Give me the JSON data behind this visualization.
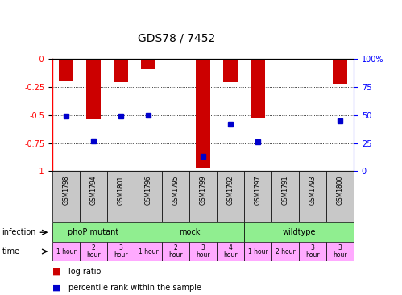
{
  "title": "GDS78 / 7452",
  "samples": [
    "GSM1798",
    "GSM1794",
    "GSM1801",
    "GSM1796",
    "GSM1795",
    "GSM1799",
    "GSM1792",
    "GSM1797",
    "GSM1791",
    "GSM1793",
    "GSM1800"
  ],
  "log_ratio": [
    -0.2,
    -0.54,
    -0.21,
    -0.09,
    0.0,
    -0.97,
    -0.21,
    -0.52,
    0.0,
    0.0,
    -0.22
  ],
  "percentile": [
    0.49,
    0.27,
    0.49,
    0.5,
    0.0,
    0.13,
    0.42,
    0.26,
    0.0,
    0.0,
    0.45
  ],
  "has_bar": [
    true,
    true,
    true,
    true,
    false,
    true,
    true,
    true,
    false,
    false,
    true
  ],
  "has_percentile": [
    true,
    true,
    true,
    true,
    false,
    true,
    true,
    true,
    false,
    false,
    true
  ],
  "group_bounds": [
    [
      0,
      3,
      "phoP mutant"
    ],
    [
      3,
      7,
      "mock"
    ],
    [
      7,
      11,
      "wildtype"
    ]
  ],
  "time_labels_full": [
    "1 hour",
    "2\nhour",
    "3\nhour",
    "1 hour",
    "2\nhour",
    "3\nhour",
    "4\nhour",
    "1 hour",
    "2 hour",
    "3\nhour",
    "3\nhour"
  ],
  "ylim_left": [
    -1.0,
    0.0
  ],
  "ylim_right": [
    0,
    100
  ],
  "yticks_left": [
    0.0,
    -0.25,
    -0.5,
    -0.75,
    -1.0
  ],
  "yticks_right": [
    0,
    25,
    50,
    75,
    100
  ],
  "bar_color": "#cc0000",
  "percentile_color": "#0000cc",
  "sample_bg_color": "#c8c8c8",
  "infection_color": "#90ee90",
  "time_color": "#ffaaff",
  "legend_bar_label": "log ratio",
  "legend_pct_label": "percentile rank within the sample"
}
